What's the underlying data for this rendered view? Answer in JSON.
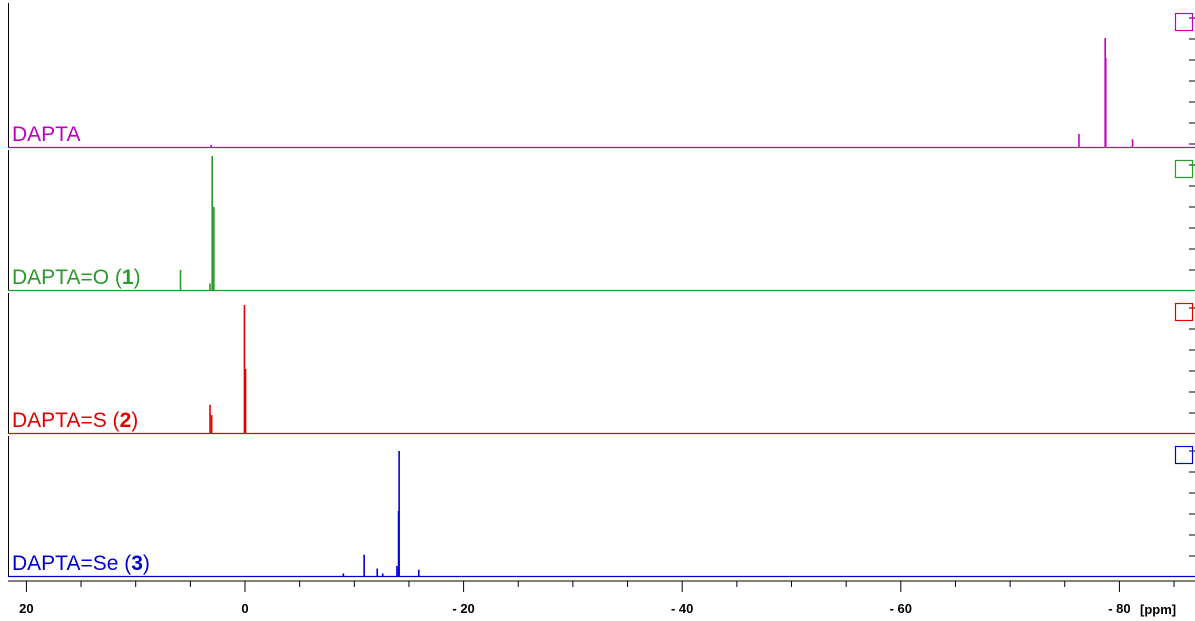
{
  "chart_data": {
    "type": "line",
    "title": "",
    "xlabel": "",
    "x_unit_label": "[ppm]",
    "xlim": [
      22,
      -87
    ],
    "x_reversed": true,
    "x_ticks": [
      20,
      0,
      -20,
      -40,
      -60,
      -80
    ],
    "x_tick_labels": [
      "20",
      "0",
      "- 20",
      "- 40",
      "- 60",
      "- 80"
    ],
    "legend_placement": "stacked panels, label at lower-left of each panel",
    "series": [
      {
        "name": "DAPTA",
        "label_parts": [
          "DAPTA",
          "",
          ""
        ],
        "color": "#c000c0",
        "peaks": [
          {
            "x": -76.3,
            "height": 0.12
          },
          {
            "x": -78.7,
            "height": 1.0
          },
          {
            "x": -78.75,
            "height": 0.82
          },
          {
            "x": -81.2,
            "height": 0.07
          },
          {
            "x": 3.1,
            "height": 0.02
          }
        ]
      },
      {
        "name": "DAPTA=O (1)",
        "label_parts": [
          "DAPTA=O (",
          "1",
          ")"
        ],
        "color": "#2a9a2a",
        "peaks": [
          {
            "x": 5.9,
            "height": 0.15
          },
          {
            "x": 3.2,
            "height": 0.05
          },
          {
            "x": 3.0,
            "height": 1.0
          },
          {
            "x": 2.85,
            "height": 0.62
          }
        ]
      },
      {
        "name": "DAPTA=S (2)",
        "label_parts": [
          "DAPTA=S (",
          "2",
          ")"
        ],
        "color": "#e00000",
        "peaks": [
          {
            "x": 3.2,
            "height": 0.22
          },
          {
            "x": 3.05,
            "height": 0.14
          },
          {
            "x": 0.05,
            "height": 1.0
          },
          {
            "x": -0.05,
            "height": 0.5
          }
        ]
      },
      {
        "name": "DAPTA=Se (3)",
        "label_parts": [
          "DAPTA=Se (",
          "3",
          ")"
        ],
        "color": "#0000d0",
        "peaks": [
          {
            "x": -9.0,
            "height": 0.02
          },
          {
            "x": -10.9,
            "height": 0.17
          },
          {
            "x": -12.1,
            "height": 0.06
          },
          {
            "x": -12.6,
            "height": 0.02
          },
          {
            "x": -13.9,
            "height": 0.08
          },
          {
            "x": -14.1,
            "height": 1.0
          },
          {
            "x": -14.05,
            "height": 0.52
          },
          {
            "x": -15.9,
            "height": 0.05
          }
        ]
      }
    ]
  }
}
